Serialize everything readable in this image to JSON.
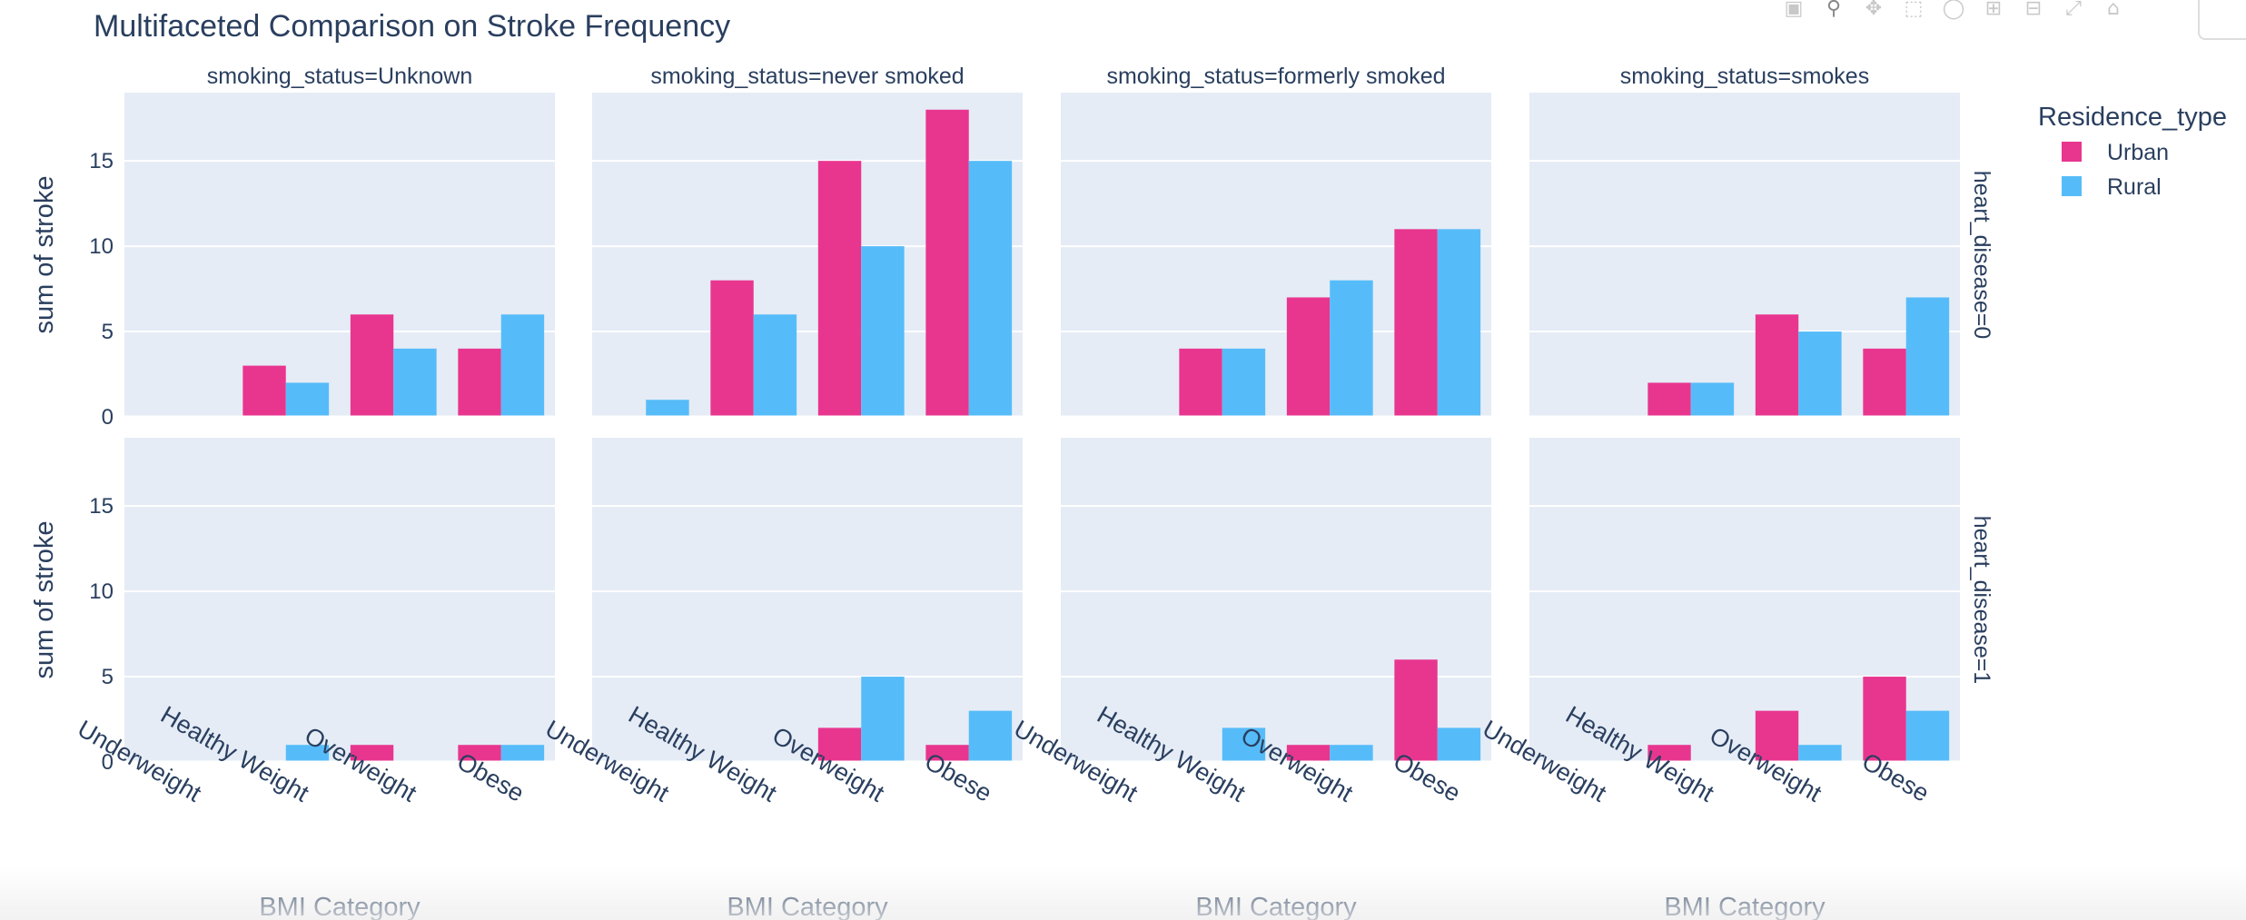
{
  "chart_data": {
    "type": "bar",
    "title": "Multifaceted Comparison on Stroke Frequency",
    "xlabel": "BMI Category",
    "ylabel": "sum of stroke",
    "categories": [
      "Underweight",
      "Healthy Weight",
      "Overweight",
      "Obese"
    ],
    "yticks": [
      0,
      5,
      10,
      15
    ],
    "ylim": [
      0,
      19
    ],
    "grid": true,
    "legend": {
      "title": "Residence_type",
      "placement": "top-right",
      "items": [
        {
          "name": "Urban",
          "color": "#e8368f"
        },
        {
          "name": "Rural",
          "color": "#56bcf9"
        }
      ]
    },
    "column_facets": [
      "smoking_status=Unknown",
      "smoking_status=never smoked",
      "smoking_status=formerly smoked",
      "smoking_status=smokes"
    ],
    "row_facets": [
      "heart_disease=0",
      "heart_disease=1"
    ],
    "panels": [
      {
        "row": 0,
        "col": 0,
        "series": [
          {
            "name": "Urban",
            "values": [
              0,
              3,
              6,
              4
            ]
          },
          {
            "name": "Rural",
            "values": [
              0,
              2,
              4,
              6
            ]
          }
        ]
      },
      {
        "row": 0,
        "col": 1,
        "series": [
          {
            "name": "Urban",
            "values": [
              0,
              8,
              15,
              18
            ]
          },
          {
            "name": "Rural",
            "values": [
              1,
              6,
              10,
              15
            ]
          }
        ]
      },
      {
        "row": 0,
        "col": 2,
        "series": [
          {
            "name": "Urban",
            "values": [
              0,
              4,
              7,
              11
            ]
          },
          {
            "name": "Rural",
            "values": [
              0,
              4,
              8,
              11
            ]
          }
        ]
      },
      {
        "row": 0,
        "col": 3,
        "series": [
          {
            "name": "Urban",
            "values": [
              0,
              2,
              6,
              4
            ]
          },
          {
            "name": "Rural",
            "values": [
              0,
              2,
              5,
              7
            ]
          }
        ]
      },
      {
        "row": 1,
        "col": 0,
        "series": [
          {
            "name": "Urban",
            "values": [
              0,
              0,
              1,
              1
            ]
          },
          {
            "name": "Rural",
            "values": [
              0,
              1,
              0,
              1
            ]
          }
        ]
      },
      {
        "row": 1,
        "col": 1,
        "series": [
          {
            "name": "Urban",
            "values": [
              0,
              0,
              2,
              1
            ]
          },
          {
            "name": "Rural",
            "values": [
              0,
              0,
              5,
              3
            ]
          }
        ]
      },
      {
        "row": 1,
        "col": 2,
        "series": [
          {
            "name": "Urban",
            "values": [
              0,
              0,
              1,
              6
            ]
          },
          {
            "name": "Rural",
            "values": [
              0,
              2,
              1,
              2
            ]
          }
        ]
      },
      {
        "row": 1,
        "col": 3,
        "series": [
          {
            "name": "Urban",
            "values": [
              0,
              1,
              3,
              5
            ]
          },
          {
            "name": "Rural",
            "values": [
              0,
              0,
              1,
              3
            ]
          }
        ]
      }
    ]
  },
  "modebar": {
    "icons": [
      "camera-icon",
      "zoom-icon",
      "pan-icon",
      "box-select-icon",
      "lasso-icon",
      "zoom-in-icon",
      "zoom-out-icon",
      "autoscale-icon",
      "home-icon"
    ]
  }
}
